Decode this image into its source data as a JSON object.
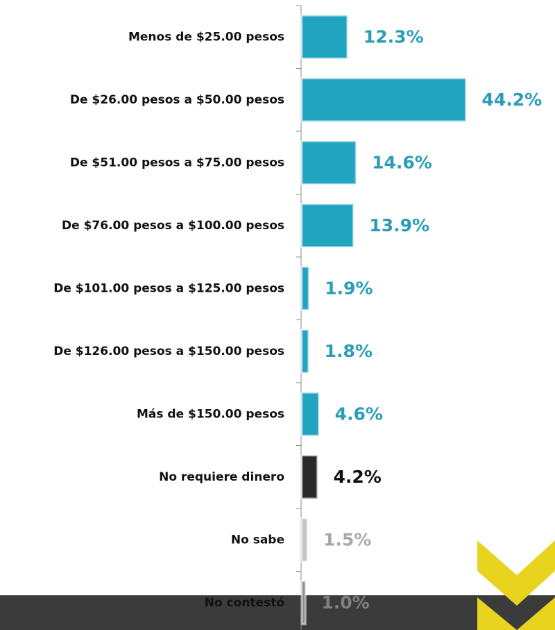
{
  "chart_data": {
    "type": "barh",
    "categories": [
      "Menos de $25.00 pesos",
      "De $26.00 pesos a $50.00 pesos",
      "De $51.00 pesos a $75.00 pesos",
      "De $76.00 pesos a $100.00 pesos",
      "De $101.00 pesos a $125.00 pesos",
      "De $126.00 pesos a $150.00 pesos",
      "Más de $150.00 pesos",
      "No requiere dinero",
      "No sabe",
      "No contestó"
    ],
    "values": [
      12.3,
      44.2,
      14.6,
      13.9,
      1.9,
      1.8,
      4.6,
      4.2,
      1.5,
      1.0
    ],
    "value_labels": [
      "12.3%",
      "44.2%",
      "14.6%",
      "13.9%",
      "1.9%",
      "1.8%",
      "4.6%",
      "4.2%",
      "1.5%",
      "1.0%"
    ],
    "colors": [
      "#20a4bf",
      "#20a4bf",
      "#20a4bf",
      "#20a4bf",
      "#20a4bf",
      "#20a4bf",
      "#20a4bf",
      "#2a2a2a",
      "#c4c4c4",
      "#8c8c8c"
    ],
    "label_colors": [
      "#2a9db6",
      "#2a9db6",
      "#2a9db6",
      "#2a9db6",
      "#2a9db6",
      "#2a9db6",
      "#2a9db6",
      "#111111",
      "#a8a8a8",
      "#808080"
    ]
  }
}
